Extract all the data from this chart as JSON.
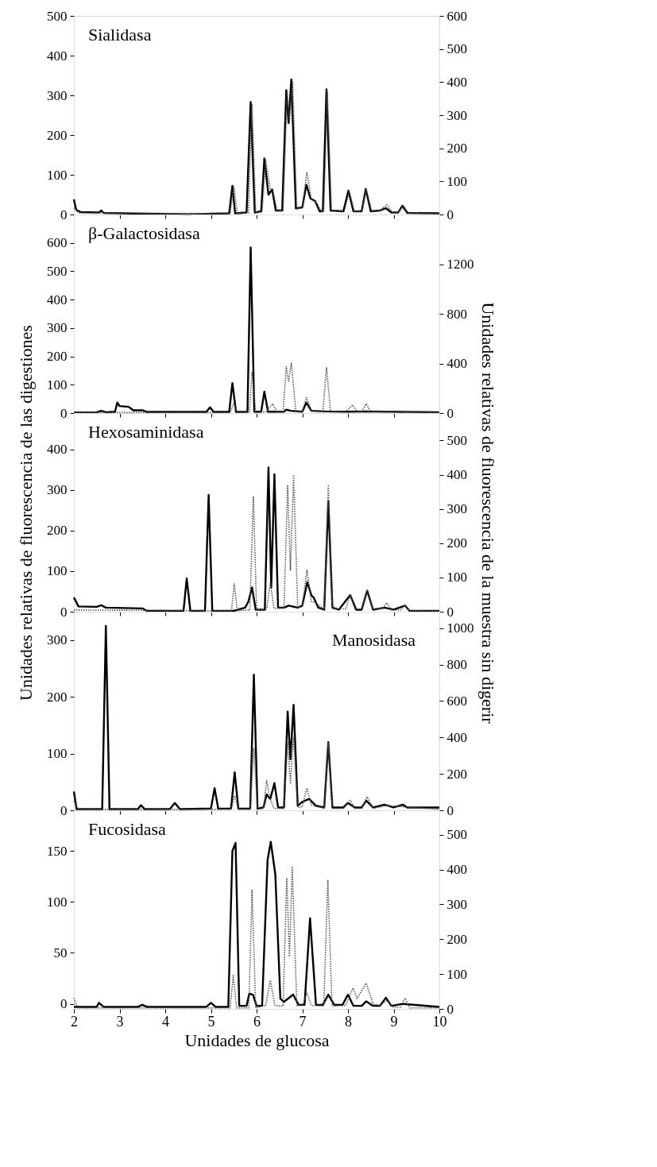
{
  "chart_data": [
    {
      "type": "line",
      "title": "Sialidasa",
      "xlim": [
        2,
        10
      ],
      "xticks": [
        2,
        3,
        4,
        5,
        6,
        7,
        8,
        9,
        10
      ],
      "ylim": [
        0,
        500
      ],
      "yticks": [
        0,
        100,
        200,
        300,
        400,
        500
      ],
      "y2lim": [
        0,
        600
      ],
      "y2ticks": [
        0,
        100,
        200,
        300,
        400,
        500,
        600
      ],
      "tick_labels": "y",
      "series": [
        {
          "color": "#000000",
          "line_style": "solid",
          "x": [
            2.0,
            2.05,
            2.15,
            2.55,
            2.6,
            2.65,
            3.5,
            4.5,
            5.0,
            5.4,
            5.47,
            5.53,
            5.78,
            5.87,
            5.96,
            6.1,
            6.17,
            6.26,
            6.34,
            6.42,
            6.56,
            6.65,
            6.7,
            6.76,
            6.86,
            7.0,
            7.09,
            7.18,
            7.28,
            7.38,
            7.45,
            7.53,
            7.62,
            7.9,
            8.01,
            8.12,
            8.3,
            8.39,
            8.5,
            8.7,
            8.83,
            8.95,
            9.1,
            9.19,
            9.3,
            10.0
          ],
          "values": [
            38,
            12,
            6,
            5,
            10,
            4,
            2,
            0,
            2,
            3,
            72,
            3,
            5,
            283,
            5,
            8,
            141,
            50,
            63,
            10,
            10,
            313,
            230,
            340,
            15,
            18,
            75,
            40,
            34,
            8,
            8,
            315,
            10,
            8,
            60,
            8,
            8,
            64,
            8,
            10,
            16,
            5,
            5,
            22,
            4,
            3
          ]
        },
        {
          "color": "#555555",
          "line_style": "dotted",
          "axis": "y2",
          "x": [
            2.0,
            2.1,
            5.0,
            5.42,
            5.5,
            5.58,
            5.82,
            5.9,
            5.98,
            6.12,
            6.2,
            6.3,
            6.36,
            6.45,
            6.58,
            6.67,
            6.72,
            6.79,
            6.88,
            7.0,
            7.1,
            7.2,
            7.3,
            7.42,
            7.47,
            7.55,
            7.64,
            7.92,
            8.03,
            8.14,
            8.3,
            8.4,
            8.52,
            8.7,
            8.85,
            8.97,
            9.1,
            9.22,
            9.32,
            10.0
          ],
          "values": [
            20,
            5,
            3,
            3,
            85,
            3,
            5,
            335,
            5,
            8,
            165,
            75,
            70,
            12,
            12,
            370,
            280,
            400,
            18,
            20,
            128,
            45,
            38,
            10,
            10,
            370,
            12,
            10,
            70,
            10,
            10,
            75,
            10,
            12,
            30,
            6,
            6,
            26,
            5,
            3
          ]
        }
      ]
    },
    {
      "type": "line",
      "title": "β-Galactosidasa",
      "xlim": [
        2,
        10
      ],
      "xticks": [
        2,
        3,
        4,
        5,
        6,
        7,
        8,
        9,
        10
      ],
      "ylim": [
        0,
        700
      ],
      "yticks": [
        0,
        100,
        200,
        300,
        400,
        500,
        600
      ],
      "y2lim": [
        0,
        1600
      ],
      "y2ticks": [
        0,
        400,
        800,
        1200
      ],
      "tick_labels": "y",
      "series": [
        {
          "color": "#000000",
          "line_style": "solid",
          "x": [
            2.0,
            2.5,
            2.6,
            2.7,
            2.9,
            2.95,
            3.0,
            3.2,
            3.3,
            3.5,
            3.6,
            4.9,
            4.98,
            5.06,
            5.4,
            5.47,
            5.55,
            5.8,
            5.87,
            5.95,
            6.1,
            6.17,
            6.25,
            6.6,
            6.65,
            6.75,
            7.0,
            7.09,
            7.2,
            7.5,
            8.0,
            8.4,
            10.0
          ],
          "values": [
            2,
            3,
            8,
            3,
            5,
            37,
            25,
            22,
            10,
            10,
            4,
            4,
            20,
            4,
            4,
            106,
            4,
            5,
            584,
            5,
            5,
            76,
            5,
            5,
            12,
            8,
            5,
            37,
            8,
            6,
            5,
            6,
            3
          ]
        },
        {
          "color": "#555555",
          "line_style": "dotted",
          "axis": "y2",
          "x": [
            2.0,
            5.0,
            5.42,
            5.5,
            5.58,
            5.84,
            5.9,
            5.98,
            6.2,
            6.35,
            6.45,
            6.58,
            6.65,
            6.7,
            6.76,
            6.86,
            7.0,
            7.09,
            7.2,
            7.45,
            7.53,
            7.62,
            7.95,
            8.1,
            8.2,
            8.3,
            8.4,
            8.5,
            10.0
          ],
          "values": [
            5,
            5,
            5,
            80,
            5,
            5,
            330,
            5,
            10,
            76,
            10,
            10,
            376,
            250,
            406,
            15,
            15,
            126,
            20,
            10,
            366,
            10,
            10,
            66,
            10,
            10,
            76,
            10,
            5
          ]
        }
      ]
    },
    {
      "type": "line",
      "title": "Hexosaminidasa",
      "ylabel": "Unidades relativas de fluorescencia de las digestiones",
      "y2label": "Unidades relativas de fluorescencia de la muestra sin digerir",
      "xlim": [
        2,
        10
      ],
      "xticks": [
        2,
        3,
        4,
        5,
        6,
        7,
        8,
        9,
        10
      ],
      "ylim": [
        0,
        490
      ],
      "yticks": [
        0,
        100,
        200,
        300,
        400
      ],
      "y2lim": [
        0,
        580
      ],
      "y2ticks": [
        0,
        100,
        200,
        300,
        400,
        500
      ],
      "tick_labels": "y",
      "series": [
        {
          "color": "#000000",
          "line_style": "solid",
          "x": [
            2.0,
            2.1,
            2.5,
            2.6,
            2.7,
            3.5,
            3.6,
            4.4,
            4.47,
            4.55,
            4.87,
            4.95,
            5.03,
            5.5,
            5.75,
            5.82,
            5.9,
            5.98,
            6.18,
            6.26,
            6.32,
            6.39,
            6.47,
            6.6,
            6.7,
            6.9,
            7.0,
            7.11,
            7.2,
            7.25,
            7.35,
            7.48,
            7.57,
            7.66,
            7.8,
            8.05,
            8.18,
            8.3,
            8.42,
            8.55,
            8.8,
            9.0,
            9.25,
            9.35,
            10.0
          ],
          "values": [
            35,
            13,
            12,
            16,
            10,
            8,
            2,
            2,
            82,
            2,
            2,
            288,
            2,
            2,
            10,
            25,
            60,
            5,
            5,
            356,
            60,
            339,
            10,
            10,
            15,
            10,
            15,
            73,
            40,
            35,
            10,
            5,
            272,
            10,
            5,
            41,
            5,
            5,
            52,
            5,
            10,
            5,
            15,
            2,
            2
          ]
        },
        {
          "color": "#555555",
          "line_style": "dotted",
          "axis": "y2",
          "x": [
            2.0,
            5.0,
            5.45,
            5.51,
            5.58,
            5.85,
            5.93,
            6.0,
            6.22,
            6.3,
            6.38,
            6.6,
            6.68,
            6.74,
            6.81,
            6.9,
            7.0,
            7.1,
            7.2,
            7.3,
            7.48,
            7.57,
            7.66,
            7.95,
            8.05,
            8.15,
            8.3,
            8.42,
            8.55,
            8.75,
            8.85,
            8.95,
            9.15,
            9.25,
            9.35,
            10.0
          ],
          "values": [
            5,
            3,
            3,
            81,
            3,
            5,
            337,
            5,
            8,
            85,
            10,
            10,
            370,
            120,
            400,
            12,
            15,
            122,
            30,
            25,
            8,
            367,
            8,
            8,
            48,
            8,
            8,
            63,
            8,
            10,
            26,
            5,
            5,
            18,
            3,
            2
          ]
        }
      ]
    },
    {
      "type": "line",
      "title": "Manosidasa",
      "xlim": [
        2,
        10
      ],
      "xticks": [
        2,
        3,
        4,
        5,
        6,
        7,
        8,
        9,
        10
      ],
      "ylim": [
        0,
        350
      ],
      "yticks": [
        0,
        100,
        200,
        300
      ],
      "y2lim": [
        0,
        1090
      ],
      "y2ticks": [
        0,
        200,
        400,
        600,
        800,
        1000
      ],
      "tick_labels": "y",
      "series": [
        {
          "color": "#000000",
          "line_style": "solid",
          "x": [
            2.0,
            2.06,
            2.62,
            2.7,
            2.78,
            3.4,
            3.47,
            3.55,
            4.1,
            4.21,
            4.32,
            5.0,
            5.08,
            5.16,
            5.44,
            5.52,
            5.6,
            5.86,
            5.94,
            6.02,
            6.15,
            6.22,
            6.3,
            6.39,
            6.47,
            6.6,
            6.68,
            6.74,
            6.81,
            6.9,
            7.0,
            7.15,
            7.3,
            7.48,
            7.57,
            7.66,
            7.9,
            8.0,
            8.15,
            8.3,
            8.4,
            8.55,
            8.8,
            9.0,
            9.2,
            9.3,
            10.0
          ],
          "values": [
            33,
            2,
            2,
            325,
            2,
            2,
            9,
            2,
            2,
            13,
            2,
            3,
            39,
            3,
            3,
            67,
            3,
            3,
            239,
            3,
            5,
            28,
            20,
            48,
            5,
            5,
            174,
            90,
            186,
            8,
            15,
            20,
            8,
            5,
            120,
            5,
            5,
            13,
            5,
            5,
            17,
            5,
            10,
            5,
            10,
            5,
            5
          ]
        },
        {
          "color": "#555555",
          "line_style": "dotted",
          "axis": "y2",
          "x": [
            2.0,
            2.1,
            5.0,
            5.44,
            5.52,
            5.6,
            5.86,
            5.94,
            6.02,
            6.15,
            6.22,
            6.3,
            6.38,
            6.6,
            6.68,
            6.74,
            6.81,
            6.9,
            7.0,
            7.1,
            7.2,
            7.48,
            7.57,
            7.66,
            7.9,
            8.05,
            8.15,
            8.3,
            8.42,
            8.55,
            8.85,
            9.25,
            10.0
          ],
          "values": [
            50,
            5,
            5,
            5,
            80,
            5,
            5,
            340,
            5,
            10,
            163,
            60,
            10,
            10,
            370,
            150,
            400,
            15,
            20,
            122,
            30,
            10,
            367,
            10,
            10,
            54,
            10,
            10,
            75,
            10,
            26,
            18,
            5
          ]
        }
      ]
    },
    {
      "type": "line",
      "title": "Fucosidasa",
      "xlabel": "Unidades de glucosa",
      "xlim": [
        2,
        10
      ],
      "xticks": [
        2,
        3,
        4,
        5,
        6,
        7,
        8,
        9,
        10
      ],
      "ylim": [
        -5,
        190
      ],
      "yticks": [
        0,
        50,
        100,
        150
      ],
      "y2lim": [
        0,
        570
      ],
      "y2ticks": [
        0,
        100,
        200,
        300,
        400,
        500
      ],
      "series": [
        {
          "color": "#000000",
          "line_style": "solid",
          "x": [
            2.0,
            2.5,
            2.55,
            2.65,
            3.4,
            3.5,
            3.6,
            4.9,
            5.0,
            5.1,
            5.38,
            5.47,
            5.54,
            5.62,
            5.78,
            5.84,
            5.92,
            6.0,
            6.12,
            6.24,
            6.31,
            6.41,
            6.52,
            6.6,
            6.8,
            6.92,
            7.05,
            7.17,
            7.3,
            7.45,
            7.57,
            7.7,
            7.88,
            8.0,
            8.12,
            8.3,
            8.4,
            8.55,
            8.7,
            8.83,
            8.95,
            9.2,
            10.0
          ],
          "values": [
            -3,
            -3,
            1,
            -3,
            -3,
            -1,
            -3,
            -3,
            1,
            -3,
            -3,
            150,
            158,
            -2,
            -2,
            10,
            9,
            -2,
            -2,
            141,
            159,
            127,
            5,
            2,
            9,
            -1,
            -1,
            84,
            -1,
            -1,
            9,
            -1,
            -1,
            9,
            -2,
            -2,
            2.5,
            -2,
            -2,
            6,
            -2,
            0,
            -3
          ]
        },
        {
          "color": "#555555",
          "line_style": "dotted",
          "axis": "y2",
          "x": [
            2.0,
            2.08,
            5.0,
            5.42,
            5.49,
            5.56,
            5.83,
            5.9,
            5.98,
            6.2,
            6.3,
            6.4,
            6.58,
            6.66,
            6.72,
            6.78,
            6.88,
            7.0,
            7.1,
            7.2,
            7.47,
            7.56,
            7.65,
            7.95,
            8.11,
            8.2,
            8.4,
            8.55,
            8.7,
            8.85,
            9.0,
            9.15,
            9.25,
            9.35,
            10.0
          ],
          "values": [
            31,
            3,
            3,
            3,
            97,
            3,
            3,
            343,
            3,
            10,
            82,
            10,
            8,
            376,
            150,
            406,
            10,
            10,
            46,
            10,
            8,
            371,
            8,
            10,
            60,
            30,
            74,
            15,
            10,
            24,
            5,
            5,
            31,
            3,
            3
          ]
        }
      ]
    }
  ]
}
